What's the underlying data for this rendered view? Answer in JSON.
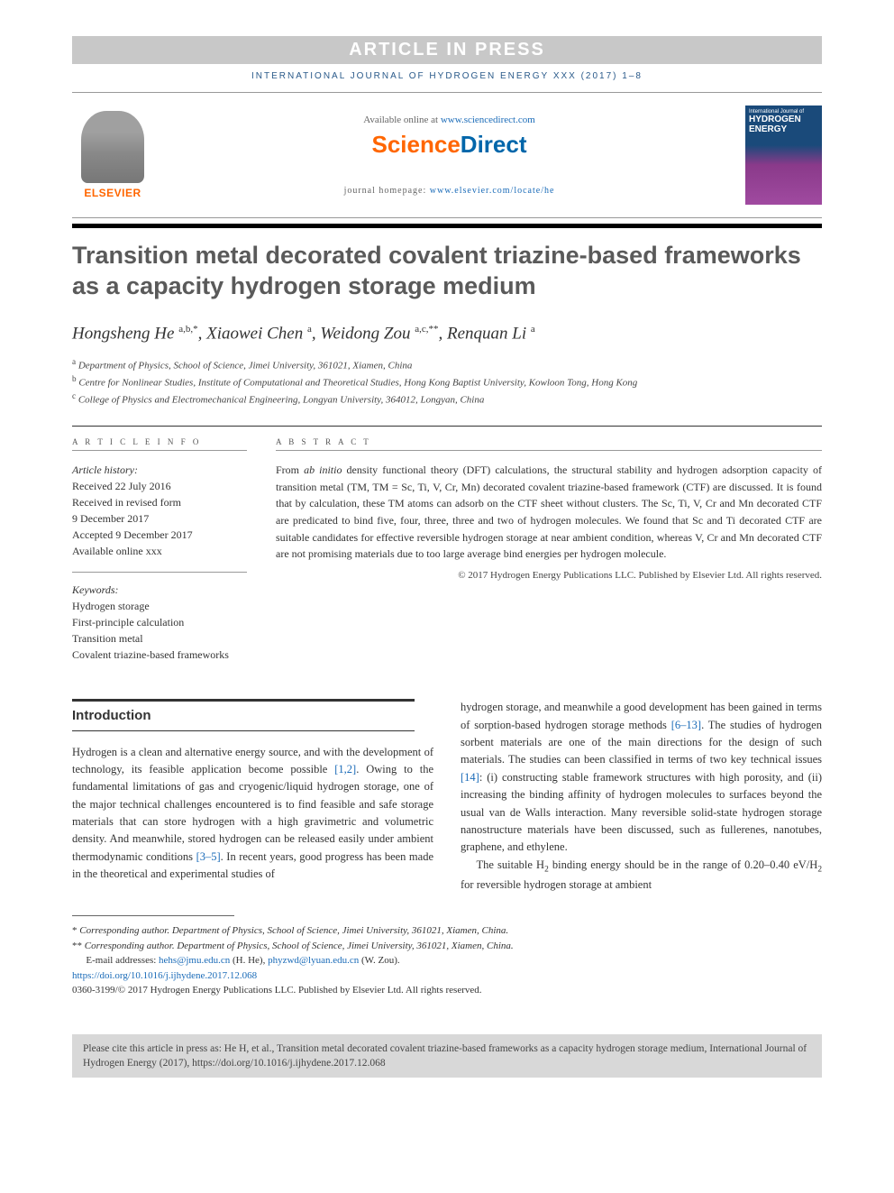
{
  "banner": "ARTICLE IN PRESS",
  "journal_ref": "INTERNATIONAL JOURNAL OF HYDROGEN ENERGY XXX (2017) 1–8",
  "elsevier": "ELSEVIER",
  "available_prefix": "Available online at ",
  "available_link": "www.sciencedirect.com",
  "scidirect_a": "Science",
  "scidirect_b": "Direct",
  "homepage_prefix": "journal homepage: ",
  "homepage_link": "www.elsevier.com/locate/he",
  "cover": {
    "line1": "International Journal of",
    "line2": "HYDROGEN",
    "line3": "ENERGY"
  },
  "title": "Transition metal decorated covalent triazine-based frameworks as a capacity hydrogen storage medium",
  "authors_html": "Hongsheng He <sup>a,b,*</sup>, Xiaowei Chen <sup>a</sup>, Weidong Zou <sup>a,c,**</sup>, Renquan Li <sup>a</sup>",
  "affiliations": {
    "a": "Department of Physics, School of Science, Jimei University, 361021, Xiamen, China",
    "b": "Centre for Nonlinear Studies, Institute of Computational and Theoretical Studies, Hong Kong Baptist University, Kowloon Tong, Hong Kong",
    "c": "College of Physics and Electromechanical Engineering, Longyan University, 364012, Longyan, China"
  },
  "info_labels": {
    "article_info": "A R T I C L E   I N F O",
    "abstract": "A B S T R A C T"
  },
  "history": {
    "head": "Article history:",
    "l1": "Received 22 July 2016",
    "l2": "Received in revised form",
    "l3": "9 December 2017",
    "l4": "Accepted 9 December 2017",
    "l5": "Available online xxx"
  },
  "keywords": {
    "head": "Keywords:",
    "k1": "Hydrogen storage",
    "k2": "First-principle calculation",
    "k3": "Transition metal",
    "k4": "Covalent triazine-based frameworks"
  },
  "abstract": "From ab initio density functional theory (DFT) calculations, the structural stability and hydrogen adsorption capacity of transition metal (TM, TM = Sc, Ti, V, Cr, Mn) decorated covalent triazine-based framework (CTF) are discussed. It is found that by calculation, these TM atoms can adsorb on the CTF sheet without clusters. The Sc, Ti, V, Cr and Mn decorated CTF are predicated to bind five, four, three, three and two of hydrogen molecules. We found that Sc and Ti decorated CTF are suitable candidates for effective reversible hydrogen storage at near ambient condition, whereas V, Cr and Mn decorated CTF are not promising materials due to too large average bind energies per hydrogen molecule.",
  "copyright": "© 2017 Hydrogen Energy Publications LLC. Published by Elsevier Ltd. All rights reserved.",
  "intro_heading": "Introduction",
  "col_left": "Hydrogen is a clean and alternative energy source, and with the development of technology, its feasible application become possible [1,2]. Owing to the fundamental limitations of gas and cryogenic/liquid hydrogen storage, one of the major technical challenges encountered is to find feasible and safe storage materials that can store hydrogen with a high gravimetric and volumetric density. And meanwhile, stored hydrogen can be released easily under ambient thermodynamic conditions [3–5]. In recent years, good progress has been made in the theoretical and experimental studies of",
  "col_right_p1": "hydrogen storage, and meanwhile a good development has been gained in terms of sorption-based hydrogen storage methods [6–13]. The studies of hydrogen sorbent materials are one of the main directions for the design of such materials. The studies can been classified in terms of two key technical issues [14]: (i) constructing stable framework structures with high porosity, and (ii) increasing the binding affinity of hydrogen molecules to surfaces beyond the usual van de Walls interaction. Many reversible solid-state hydrogen storage nanostructure materials have been discussed, such as fullerenes, nanotubes, graphene, and ethylene.",
  "col_right_p2": "The suitable H₂ binding energy should be in the range of 0.20–0.40 eV/H₂ for reversible hydrogen storage at ambient",
  "footer": {
    "corr1": "Corresponding author. Department of Physics, School of Science, Jimei University, 361021, Xiamen, China.",
    "corr2": "Corresponding author. Department of Physics, School of Science, Jimei University, 361021, Xiamen, China.",
    "emails_label": "E-mail addresses: ",
    "email1": "hehs@jmu.edu.cn",
    "email1_who": " (H. He), ",
    "email2": "phyzwd@lyuan.edu.cn",
    "email2_who": " (W. Zou).",
    "doi": "https://doi.org/10.1016/j.ijhydene.2017.12.068",
    "issn": "0360-3199/© 2017 Hydrogen Energy Publications LLC. Published by Elsevier Ltd. All rights reserved."
  },
  "cite": "Please cite this article in press as: He H, et al., Transition metal decorated covalent triazine-based frameworks as a capacity hydrogen storage medium, International Journal of Hydrogen Energy (2017), https://doi.org/10.1016/j.ijhydene.2017.12.068",
  "refs": {
    "r12": "[1,2]",
    "r35": "[3–5]",
    "r613": "[6–13]",
    "r14": "[14]"
  }
}
